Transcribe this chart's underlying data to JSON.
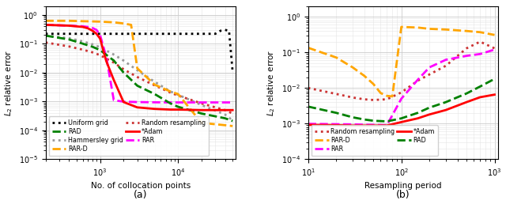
{
  "left": {
    "series_order": [
      "uniform_grid",
      "hammersley_grid",
      "random_resampling",
      "RAR",
      "RAD",
      "RAR_D",
      "Adam"
    ],
    "uniform_grid": {
      "x": [
        200,
        400,
        600,
        800,
        1000,
        2000,
        3000,
        4000,
        5000,
        6000,
        7000,
        8000,
        9000,
        10000,
        12000,
        15000,
        20000,
        30000,
        35000,
        40000,
        45000,
        50000
      ],
      "y": [
        0.22,
        0.22,
        0.22,
        0.22,
        0.22,
        0.22,
        0.22,
        0.22,
        0.22,
        0.22,
        0.22,
        0.22,
        0.22,
        0.22,
        0.22,
        0.22,
        0.22,
        0.22,
        0.28,
        0.3,
        0.28,
        0.011
      ],
      "color": "black",
      "linestyle": "dotted",
      "linewidth": 2.0,
      "label": "Uniform grid"
    },
    "hammersley_grid": {
      "x": [
        200,
        400,
        600,
        800,
        1000,
        1500,
        2000,
        3000,
        5000,
        8000,
        10000,
        20000,
        40000,
        50000
      ],
      "y": [
        0.19,
        0.155,
        0.12,
        0.095,
        0.075,
        0.042,
        0.026,
        0.012,
        0.0048,
        0.0022,
        0.0017,
        0.00075,
        0.00035,
        0.00022
      ],
      "color": "#999999",
      "linestyle": "dotted",
      "linewidth": 2.0,
      "label": "Hammersley grid"
    },
    "random_resampling": {
      "x": [
        200,
        400,
        600,
        800,
        1000,
        1500,
        2000,
        3000,
        5000,
        8000,
        10000,
        20000,
        40000,
        50000
      ],
      "y": [
        0.11,
        0.08,
        0.062,
        0.05,
        0.04,
        0.022,
        0.013,
        0.007,
        0.0036,
        0.002,
        0.0016,
        0.00085,
        0.0005,
        0.00038
      ],
      "color": "#cc3333",
      "linestyle": "dotted",
      "linewidth": 2.0,
      "label": "Random resampling"
    },
    "RAR": {
      "x": [
        200,
        400,
        600,
        700,
        800,
        900,
        1000,
        1200,
        1500,
        2000,
        3000,
        5000,
        8000,
        10000,
        20000,
        40000,
        50000
      ],
      "y": [
        0.45,
        0.42,
        0.4,
        0.38,
        0.35,
        0.3,
        0.2,
        0.035,
        0.0011,
        0.00098,
        0.00095,
        0.00093,
        0.00092,
        0.00092,
        0.00092,
        0.00092,
        0.00092
      ],
      "color": "magenta",
      "linestyle": "dashed",
      "linewidth": 2.0,
      "label": "RAR"
    },
    "RAD": {
      "x": [
        200,
        400,
        600,
        800,
        1000,
        1500,
        2000,
        3000,
        5000,
        8000,
        10000,
        20000,
        40000,
        50000
      ],
      "y": [
        0.19,
        0.14,
        0.1,
        0.078,
        0.06,
        0.026,
        0.01,
        0.0035,
        0.0018,
        0.00085,
        0.00065,
        0.00038,
        0.00026,
        0.00021
      ],
      "color": "green",
      "linestyle": "dashed",
      "linewidth": 2.0,
      "label": "RAD"
    },
    "RAR_D": {
      "x": [
        200,
        400,
        600,
        800,
        1000,
        1500,
        2000,
        2500,
        3000,
        5000,
        8000,
        10000,
        20000,
        40000,
        50000
      ],
      "y": [
        0.62,
        0.62,
        0.6,
        0.59,
        0.58,
        0.55,
        0.5,
        0.45,
        0.014,
        0.0038,
        0.0022,
        0.0018,
        0.00018,
        0.00015,
        0.00014
      ],
      "color": "orange",
      "linestyle": "dashed",
      "linewidth": 2.0,
      "label": "RAR-D"
    },
    "Adam": {
      "x": [
        200,
        400,
        600,
        700,
        800,
        900,
        1000,
        1200,
        1500,
        2000,
        3000,
        5000,
        8000,
        10000,
        20000,
        40000,
        50000
      ],
      "y": [
        0.45,
        0.42,
        0.38,
        0.34,
        0.28,
        0.22,
        0.15,
        0.025,
        0.0055,
        0.00095,
        0.00062,
        0.00055,
        0.00052,
        0.00052,
        0.0005,
        0.0005,
        0.0005
      ],
      "color": "red",
      "linestyle": "solid",
      "linewidth": 2.0,
      "label": "*Adam"
    },
    "xlabel": "No. of collocation points",
    "ylabel": "$L_2$ relative error",
    "ylim": [
      1e-05,
      2.0
    ],
    "xlim": [
      200,
      55000
    ],
    "legend_col1": [
      "uniform_grid",
      "hammersley_grid",
      "random_resampling",
      "RAR"
    ],
    "legend_col2": [
      "RAD",
      "RAR_D",
      "Adam"
    ],
    "subplot_label": "(a)"
  },
  "right": {
    "series_order": [
      "random_resampling",
      "RAR",
      "RAD",
      "RAR_D",
      "Adam"
    ],
    "random_resampling": {
      "x": [
        10,
        20,
        30,
        40,
        50,
        70,
        100,
        150,
        200,
        300,
        500,
        700,
        1000
      ],
      "y": [
        0.01,
        0.0068,
        0.0054,
        0.0048,
        0.0046,
        0.0048,
        0.0075,
        0.016,
        0.024,
        0.042,
        0.13,
        0.2,
        0.13
      ],
      "color": "#cc3333",
      "linestyle": "dotted",
      "linewidth": 2.0,
      "label": "Random resampling"
    },
    "RAR": {
      "x": [
        10,
        20,
        30,
        40,
        50,
        70,
        100,
        150,
        200,
        300,
        500,
        700,
        1000
      ],
      "y": [
        0.00098,
        0.00096,
        0.00095,
        0.00093,
        0.00092,
        0.0009,
        0.005,
        0.017,
        0.038,
        0.062,
        0.08,
        0.09,
        0.12
      ],
      "color": "magenta",
      "linestyle": "dashed",
      "linewidth": 2.0,
      "label": "RAR"
    },
    "RAD": {
      "x": [
        10,
        20,
        30,
        40,
        50,
        70,
        100,
        150,
        200,
        300,
        500,
        700,
        1000
      ],
      "y": [
        0.003,
        0.002,
        0.0015,
        0.0013,
        0.0012,
        0.00115,
        0.0014,
        0.002,
        0.0028,
        0.004,
        0.007,
        0.011,
        0.018
      ],
      "color": "green",
      "linestyle": "dashed",
      "linewidth": 2.0,
      "label": "RAD"
    },
    "RAR_D": {
      "x": [
        10,
        20,
        30,
        40,
        50,
        60,
        70,
        80,
        100,
        150,
        200,
        300,
        500,
        700,
        1000
      ],
      "y": [
        0.135,
        0.072,
        0.038,
        0.022,
        0.013,
        0.0072,
        0.006,
        0.0058,
        0.52,
        0.5,
        0.46,
        0.44,
        0.4,
        0.37,
        0.31
      ],
      "color": "orange",
      "linestyle": "dashed",
      "linewidth": 2.0,
      "label": "RAR-D"
    },
    "Adam": {
      "x": [
        10,
        20,
        30,
        40,
        50,
        70,
        100,
        150,
        200,
        300,
        500,
        700,
        1000
      ],
      "y": [
        0.00092,
        0.0009,
        0.00088,
        0.00088,
        0.00088,
        0.00088,
        0.0011,
        0.0014,
        0.0018,
        0.0024,
        0.004,
        0.0055,
        0.0065
      ],
      "color": "red",
      "linestyle": "solid",
      "linewidth": 2.0,
      "label": "*Adam"
    },
    "xlabel": "Resampling period",
    "ylabel": "$L_2$ relative error",
    "ylim": [
      0.0001,
      2.0
    ],
    "xlim": [
      10,
      1100
    ],
    "legend_col1": [
      "random_resampling",
      "RAR",
      "RAD"
    ],
    "legend_col2": [
      "RAR_D",
      "Adam"
    ],
    "subplot_label": "(b)"
  }
}
